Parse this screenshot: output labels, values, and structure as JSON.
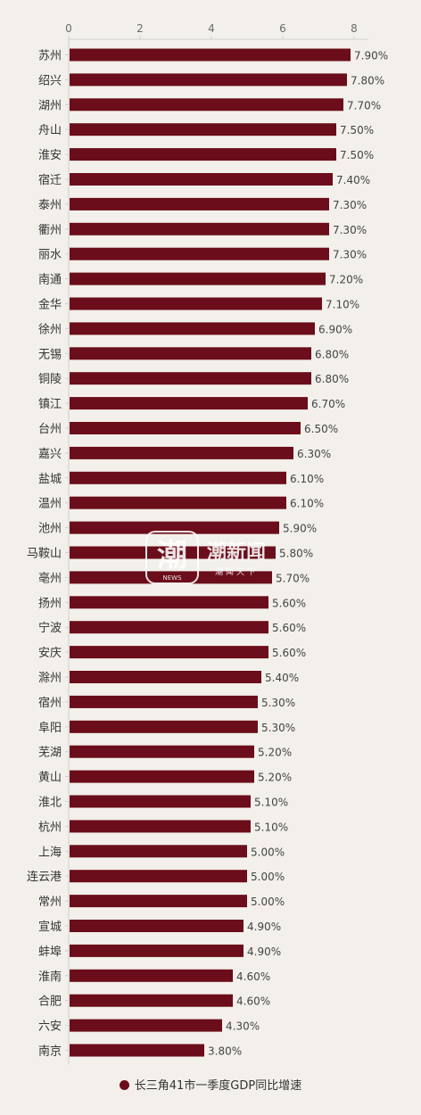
{
  "chart_data": {
    "type": "bar",
    "orientation": "horizontal",
    "categories": [
      "苏州",
      "绍兴",
      "湖州",
      "舟山",
      "淮安",
      "宿迁",
      "泰州",
      "衢州",
      "丽水",
      "南通",
      "金华",
      "徐州",
      "无锡",
      "铜陵",
      "镇江",
      "台州",
      "嘉兴",
      "盐城",
      "温州",
      "池州",
      "马鞍山",
      "亳州",
      "扬州",
      "宁波",
      "安庆",
      "滁州",
      "宿州",
      "阜阳",
      "芜湖",
      "黄山",
      "淮北",
      "杭州",
      "上海",
      "连云港",
      "常州",
      "宣城",
      "蚌埠",
      "淮南",
      "合肥",
      "六安",
      "南京"
    ],
    "values": [
      7.9,
      7.8,
      7.7,
      7.5,
      7.5,
      7.4,
      7.3,
      7.3,
      7.3,
      7.2,
      7.1,
      6.9,
      6.8,
      6.8,
      6.7,
      6.5,
      6.3,
      6.1,
      6.1,
      5.9,
      5.8,
      5.7,
      5.6,
      5.6,
      5.6,
      5.4,
      5.3,
      5.3,
      5.2,
      5.2,
      5.1,
      5.1,
      5.0,
      5.0,
      5.0,
      4.9,
      4.9,
      4.6,
      4.6,
      4.3,
      3.8
    ],
    "value_labels": [
      "7.90%",
      "7.80%",
      "7.70%",
      "7.50%",
      "7.50%",
      "7.40%",
      "7.30%",
      "7.30%",
      "7.30%",
      "7.20%",
      "7.10%",
      "6.90%",
      "6.80%",
      "6.80%",
      "6.70%",
      "6.50%",
      "6.30%",
      "6.10%",
      "6.10%",
      "5.90%",
      "5.80%",
      "5.70%",
      "5.60%",
      "5.60%",
      "5.60%",
      "5.40%",
      "5.30%",
      "5.30%",
      "5.20%",
      "5.20%",
      "5.10%",
      "5.10%",
      "5.00%",
      "5.00%",
      "5.00%",
      "4.90%",
      "4.90%",
      "4.60%",
      "4.60%",
      "4.30%",
      "3.80%"
    ],
    "x_ticks": [
      0,
      2,
      4,
      6,
      8
    ],
    "xlim": [
      0,
      8.4
    ],
    "axis_position": "top",
    "grid": false,
    "legend": {
      "placement": "bottom-center",
      "label": "长三角41市一季度GDP同比增速"
    },
    "bar_color": "#6b0d1a"
  },
  "watermark": {
    "glyph": "潮",
    "name": "潮新闻",
    "sub": "NEWS",
    "slogan": "潮闻天下"
  },
  "colors": {
    "background": "#f3f0eb",
    "bar": "#6b0d1a",
    "axis": "#cfcfcf"
  }
}
